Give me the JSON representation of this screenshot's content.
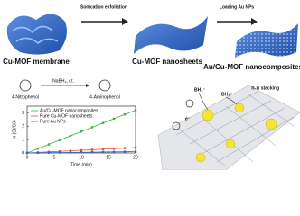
{
  "labels": {
    "membrane": "Cu-MOF membrane",
    "step1": "Sonication exfoliation",
    "nanosheets": "Cu-MOF nanosheets",
    "step2": "Loading Au NPs",
    "composites": "Au/Cu-MOF nanocomposites",
    "reactant": "4-Nitrophenol",
    "product": "4-Aminophenol",
    "conditions": "NaBH₄, r.t.",
    "bh4_a": "BH₄⁻",
    "bh4_b": "BH₄⁻",
    "electron": "e⁻",
    "stacking": "π-π stacking"
  },
  "chart_data": {
    "type": "line",
    "x_label": "Time (min)",
    "y_label": "ln (Ct/C0)",
    "x": [
      0,
      2,
      4,
      6,
      8,
      10,
      12,
      14,
      16,
      18,
      20
    ],
    "series": [
      {
        "name": "Au/Cu-MOF nanocomposites",
        "color": "#3cb043",
        "values": [
          0,
          0.32,
          0.64,
          0.96,
          1.28,
          1.6,
          1.92,
          2.24,
          2.56,
          2.88,
          3.2
        ]
      },
      {
        "name": "Pure Cu-MOF nanosheets",
        "color": "#d9534f",
        "values": [
          0,
          0.04,
          0.08,
          0.12,
          0.16,
          0.2,
          0.24,
          0.28,
          0.32,
          0.36,
          0.4
        ]
      },
      {
        "name": "Pure Au NPs",
        "color": "#3366cc",
        "values": [
          0,
          0.01,
          0.02,
          0.03,
          0.04,
          0.05,
          0.06,
          0.07,
          0.08,
          0.09,
          0.1
        ]
      }
    ],
    "xlim": [
      0,
      20
    ],
    "xticks": [
      0,
      5,
      10,
      15,
      20
    ],
    "ylim": [
      0,
      3.5
    ],
    "yticks": [
      0,
      1,
      2,
      3
    ]
  }
}
